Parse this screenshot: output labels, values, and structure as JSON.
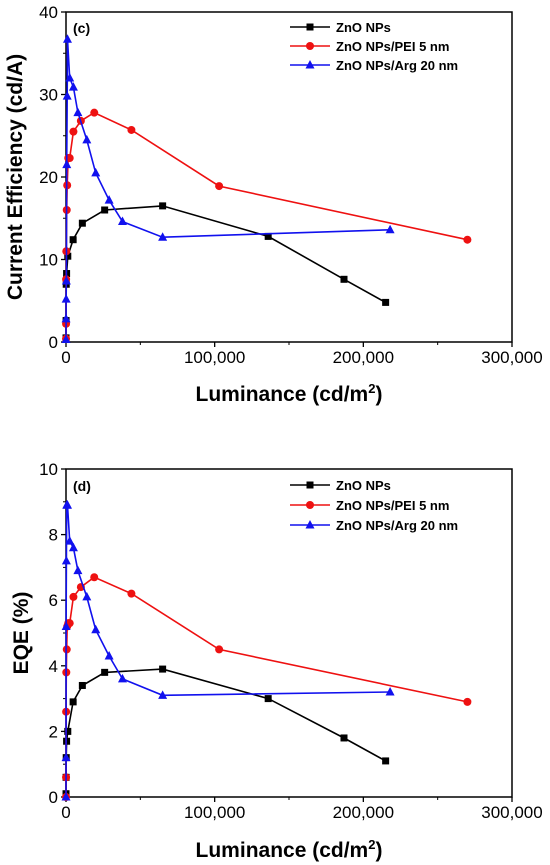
{
  "colors": {
    "zno": "#000000",
    "pei": "#ee1111",
    "arg": "#1111ee"
  },
  "chart_data": [
    {
      "type": "line",
      "panel_label": "(c)",
      "ylabel": "Current Efficiency (cd/A)",
      "xlabel_main": "Luminance (cd/m",
      "xlabel_sup": "2",
      "xlabel_close": ")",
      "xlim": [
        0,
        300000
      ],
      "ylim": [
        0,
        40
      ],
      "xticks": [
        0,
        100000,
        200000,
        300000
      ],
      "xtick_labels": [
        "0",
        "100,000",
        "200,000",
        "300,000"
      ],
      "yticks": [
        0,
        10,
        20,
        30,
        40
      ],
      "ytick_labels": [
        "0",
        "10",
        "20",
        "30",
        "40"
      ],
      "legend_position": "top-right",
      "series": [
        {
          "name": "ZnO NPs",
          "color": "#000000",
          "marker": "square",
          "x": [
            20,
            60,
            150,
            400,
            1200,
            4800,
            11000,
            26000,
            65000,
            136000,
            187000,
            215000
          ],
          "y": [
            0.5,
            2.6,
            7.0,
            8.3,
            10.4,
            12.4,
            14.4,
            16.0,
            16.5,
            12.8,
            7.6,
            4.8
          ]
        },
        {
          "name": "ZnO NPs/PEI 5 nm",
          "color": "#ee1111",
          "marker": "circle",
          "x": [
            10,
            40,
            80,
            200,
            500,
            800,
            1500,
            2500,
            5000,
            10000,
            19000,
            44000,
            103000,
            270000
          ],
          "y": [
            0.4,
            2.2,
            7.6,
            11.0,
            16.0,
            19.0,
            22.3,
            22.3,
            25.5,
            26.8,
            27.8,
            25.7,
            18.9,
            12.4
          ]
        },
        {
          "name": "ZnO NPs/Arg 20 nm",
          "color": "#1111ee",
          "marker": "triangle",
          "x": [
            10,
            40,
            100,
            250,
            500,
            800,
            1000,
            2500,
            5000,
            8000,
            14000,
            20000,
            29000,
            38000,
            65000,
            218000
          ],
          "y": [
            0.3,
            2.8,
            5.2,
            7.4,
            21.5,
            29.8,
            36.7,
            32.0,
            30.9,
            27.8,
            24.5,
            20.5,
            17.2,
            14.6,
            12.7,
            13.6
          ]
        }
      ]
    },
    {
      "type": "line",
      "panel_label": "(d)",
      "ylabel": "EQE (%)",
      "xlabel_main": "Luminance (cd/m",
      "xlabel_sup": "2",
      "xlabel_close": ")",
      "xlim": [
        0,
        300000
      ],
      "ylim": [
        0,
        10
      ],
      "xticks": [
        0,
        100000,
        200000,
        300000
      ],
      "xtick_labels": [
        "0",
        "100,000",
        "200,000",
        "300,000"
      ],
      "yticks": [
        0,
        2,
        4,
        6,
        8,
        10
      ],
      "ytick_labels": [
        "0",
        "2",
        "4",
        "6",
        "8",
        "10"
      ],
      "legend_position": "top-right",
      "series": [
        {
          "name": "ZnO NPs",
          "color": "#000000",
          "marker": "square",
          "x": [
            20,
            60,
            150,
            400,
            1200,
            4800,
            11000,
            26000,
            65000,
            136000,
            187000,
            215000
          ],
          "y": [
            0.1,
            0.6,
            1.2,
            1.7,
            2.0,
            2.9,
            3.4,
            3.8,
            3.9,
            3.0,
            1.8,
            1.1
          ]
        },
        {
          "name": "ZnO NPs/PEI 5 nm",
          "color": "#ee1111",
          "marker": "circle",
          "x": [
            10,
            40,
            80,
            200,
            500,
            800,
            1500,
            2500,
            5000,
            10000,
            19000,
            44000,
            103000,
            270000
          ],
          "y": [
            0.0,
            0.6,
            2.6,
            3.8,
            4.5,
            5.2,
            5.3,
            5.3,
            6.1,
            6.4,
            6.7,
            6.2,
            4.5,
            2.9
          ]
        },
        {
          "name": "ZnO NPs/Arg 20 nm",
          "color": "#1111ee",
          "marker": "triangle",
          "x": [
            10,
            40,
            100,
            250,
            500,
            800,
            1000,
            2500,
            5000,
            8000,
            14000,
            20000,
            29000,
            38000,
            65000,
            218000
          ],
          "y": [
            0.0,
            1.2,
            5.2,
            7.2,
            8.9,
            8.9,
            8.9,
            7.8,
            7.6,
            6.9,
            6.1,
            5.1,
            4.3,
            3.6,
            3.1,
            3.2
          ]
        }
      ]
    }
  ]
}
